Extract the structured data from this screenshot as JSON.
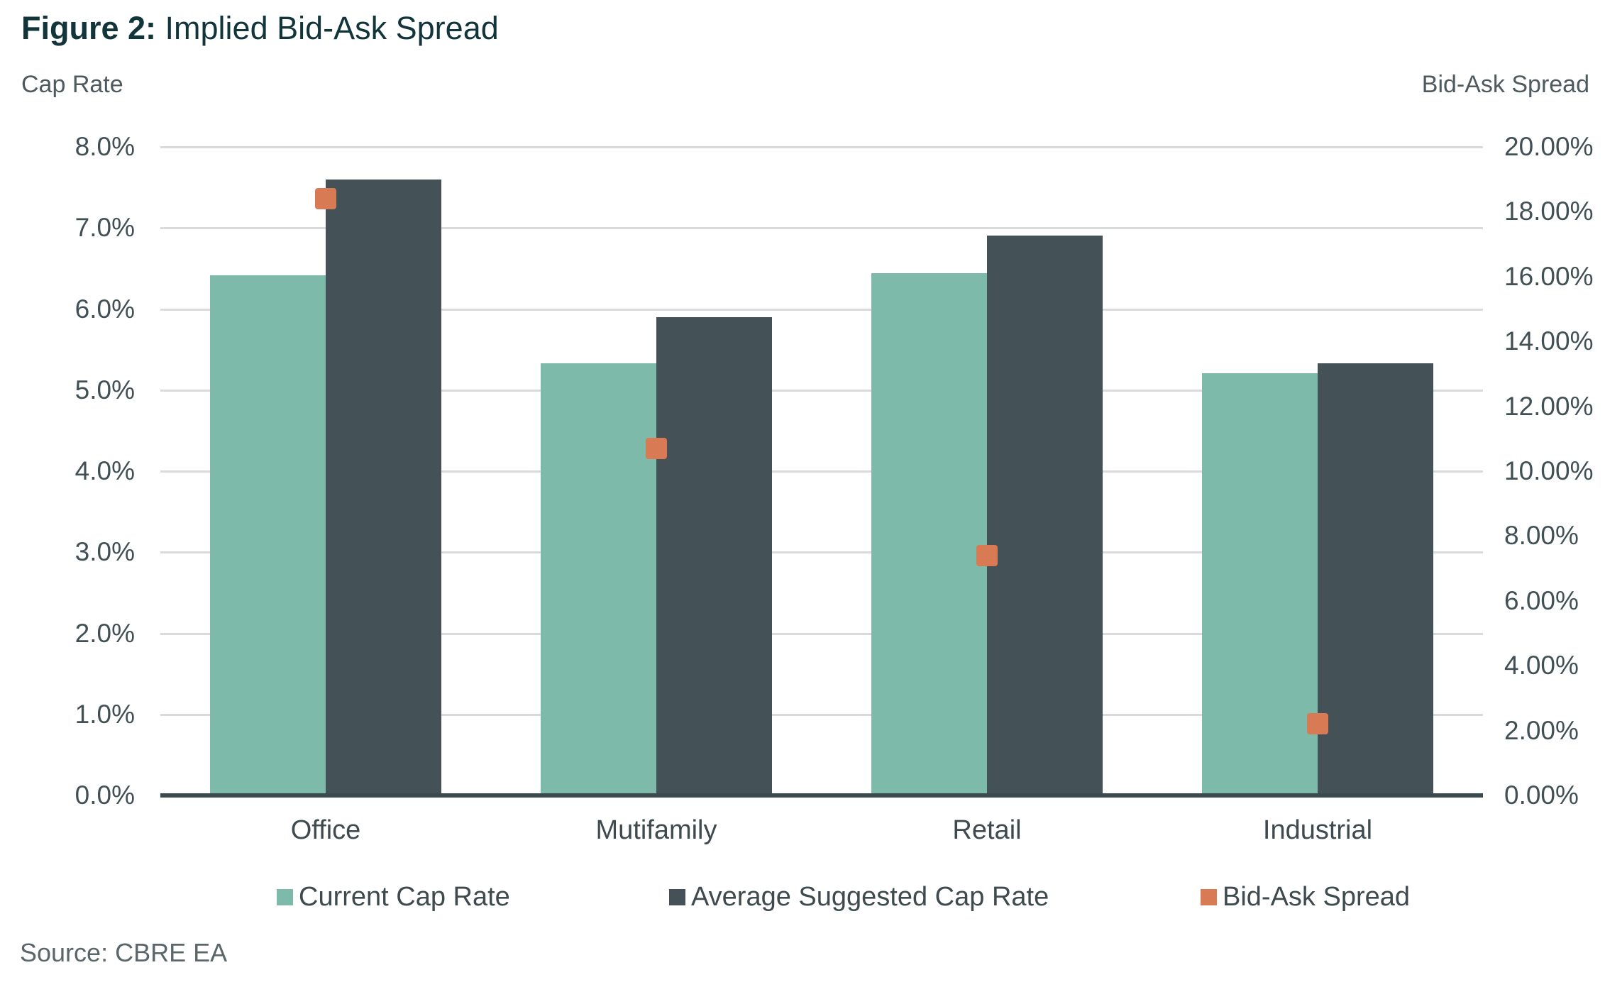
{
  "title": {
    "label_bold": "Figure 2:",
    "label_rest": " Implied Bid-Ask Spread"
  },
  "left_axis_title": "Cap Rate",
  "right_axis_title": "Bid-Ask Spread",
  "source": "Source: CBRE EA",
  "colors": {
    "title_text": "#12343B",
    "current_cap_rate": "#7DBAAA",
    "avg_suggested_cap_rate": "#445257",
    "bid_ask_spread": "#D87B55",
    "gridline": "#D9DADB",
    "axis_line": "#3A4A4F",
    "tick_text": "#415055"
  },
  "chart_data": {
    "type": "bar",
    "title": "Figure 2: Implied Bid-Ask Spread",
    "categories": [
      "Office",
      "Mutifamily",
      "Retail",
      "Industrial"
    ],
    "series": [
      {
        "name": "Current Cap Rate",
        "type": "bar",
        "axis": "left",
        "color_key": "current_cap_rate",
        "values": [
          6.42,
          5.33,
          6.44,
          5.21
        ]
      },
      {
        "name": "Average Suggested Cap Rate",
        "type": "bar",
        "axis": "left",
        "color_key": "avg_suggested_cap_rate",
        "values": [
          7.6,
          5.9,
          6.91,
          5.33
        ]
      },
      {
        "name": "Bid-Ask Spread",
        "type": "square-marker",
        "axis": "right",
        "color_key": "bid_ask_spread",
        "values": [
          18.4,
          10.7,
          7.4,
          2.2
        ]
      }
    ],
    "left_axis": {
      "title": "Cap Rate",
      "min": 0,
      "max": 8,
      "step": 1,
      "tick_labels": [
        "0.0%",
        "1.0%",
        "2.0%",
        "3.0%",
        "4.0%",
        "5.0%",
        "6.0%",
        "7.0%",
        "8.0%"
      ]
    },
    "right_axis": {
      "title": "Bid-Ask Spread",
      "min": 0,
      "max": 20,
      "step": 2,
      "tick_labels": [
        "0.00%",
        "2.00%",
        "4.00%",
        "6.00%",
        "8.00%",
        "10.00%",
        "12.00%",
        "14.00%",
        "16.00%",
        "18.00%",
        "20.00%"
      ]
    },
    "grid": true,
    "legend_position": "bottom"
  }
}
